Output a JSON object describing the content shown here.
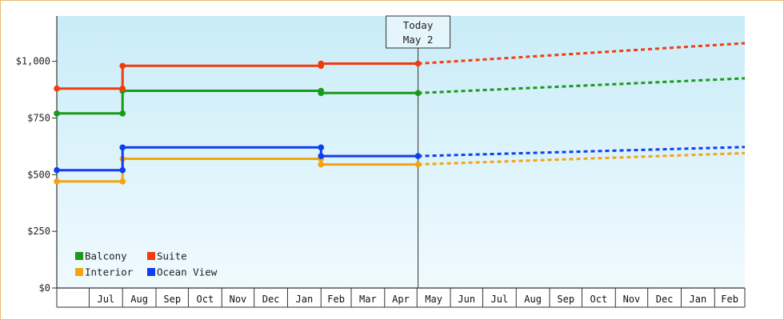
{
  "chart_data": {
    "type": "line",
    "step": true,
    "title": "",
    "xlabel": "",
    "ylabel": "",
    "ylim": [
      0,
      1200
    ],
    "y_ticks": [
      0,
      250,
      500,
      750,
      1000
    ],
    "y_tick_labels": [
      "$0",
      "$250",
      "$500",
      "$750",
      "$1,000"
    ],
    "x_range": [
      "2025-06-01",
      "2027-03-01"
    ],
    "month_labels": [
      {
        "label": "Jul",
        "date": "2025-07-01"
      },
      {
        "label": "Aug",
        "date": "2025-08-01"
      },
      {
        "label": "Sep",
        "date": "2025-09-01"
      },
      {
        "label": "Oct",
        "date": "2025-10-01"
      },
      {
        "label": "Nov",
        "date": "2025-11-01"
      },
      {
        "label": "Dec",
        "date": "2025-12-01"
      },
      {
        "label": "Jan",
        "date": "2026-01-01"
      },
      {
        "label": "Feb",
        "date": "2026-02-01"
      },
      {
        "label": "Mar",
        "date": "2026-03-01"
      },
      {
        "label": "Apr",
        "date": "2026-04-01"
      },
      {
        "label": "May",
        "date": "2026-05-01"
      },
      {
        "label": "Jun",
        "date": "2026-06-01"
      },
      {
        "label": "Jul",
        "date": "2026-07-01"
      },
      {
        "label": "Aug",
        "date": "2026-08-01"
      },
      {
        "label": "Sep",
        "date": "2026-09-01"
      },
      {
        "label": "Oct",
        "date": "2026-10-01"
      },
      {
        "label": "Nov",
        "date": "2026-11-01"
      },
      {
        "label": "Dec",
        "date": "2026-12-01"
      },
      {
        "label": "Jan",
        "date": "2027-01-01"
      },
      {
        "label": "Feb",
        "date": "2027-02-01"
      }
    ],
    "today": {
      "date": "2026-05-02",
      "line1": "Today",
      "line2": "May 2"
    },
    "grid": false,
    "legend_position": "bottom-left",
    "background": {
      "top": "#c9ecf8",
      "bottom": "#f0fafe"
    },
    "series": [
      {
        "name": "Balcony",
        "color": "#1a9a1a",
        "points": [
          {
            "x": "2025-06-01",
            "y": 770
          },
          {
            "x": "2025-08-01",
            "y": 770
          },
          {
            "x": "2025-08-01",
            "y": 870
          },
          {
            "x": "2026-02-01",
            "y": 870
          },
          {
            "x": "2026-02-01",
            "y": 860
          },
          {
            "x": "2026-05-02",
            "y": 860
          }
        ],
        "forecast": [
          {
            "x": "2026-05-02",
            "y": 860
          },
          {
            "x": "2027-03-01",
            "y": 925
          }
        ]
      },
      {
        "name": "Interior",
        "color": "#f5a30f",
        "points": [
          {
            "x": "2025-06-01",
            "y": 470
          },
          {
            "x": "2025-08-01",
            "y": 470
          },
          {
            "x": "2025-08-01",
            "y": 570
          },
          {
            "x": "2026-02-01",
            "y": 570
          },
          {
            "x": "2026-02-01",
            "y": 545
          },
          {
            "x": "2026-05-02",
            "y": 545
          }
        ],
        "forecast": [
          {
            "x": "2026-05-02",
            "y": 545
          },
          {
            "x": "2027-03-01",
            "y": 595
          }
        ]
      },
      {
        "name": "Suite",
        "color": "#f23c0f",
        "points": [
          {
            "x": "2025-06-01",
            "y": 880
          },
          {
            "x": "2025-08-01",
            "y": 880
          },
          {
            "x": "2025-08-01",
            "y": 980
          },
          {
            "x": "2026-02-01",
            "y": 980
          },
          {
            "x": "2026-02-01",
            "y": 990
          },
          {
            "x": "2026-05-02",
            "y": 990
          }
        ],
        "forecast": [
          {
            "x": "2026-05-02",
            "y": 990
          },
          {
            "x": "2027-03-01",
            "y": 1080
          }
        ]
      },
      {
        "name": "Ocean View",
        "color": "#0f3ef2",
        "points": [
          {
            "x": "2025-06-01",
            "y": 520
          },
          {
            "x": "2025-08-01",
            "y": 520
          },
          {
            "x": "2025-08-01",
            "y": 620
          },
          {
            "x": "2026-02-01",
            "y": 620
          },
          {
            "x": "2026-02-01",
            "y": 582
          },
          {
            "x": "2026-05-02",
            "y": 582
          }
        ],
        "forecast": [
          {
            "x": "2026-05-02",
            "y": 582
          },
          {
            "x": "2027-03-01",
            "y": 622
          }
        ]
      }
    ]
  }
}
